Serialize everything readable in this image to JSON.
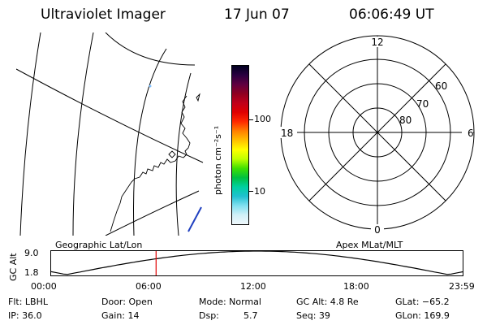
{
  "header": {
    "title": "Ultraviolet Imager",
    "date": "17 Jun 07",
    "time": "06:06:49 UT"
  },
  "colorbar": {
    "unit_label": "photon cm⁻²s⁻¹",
    "ticks": [
      "100",
      "10"
    ],
    "colors": [
      "#000020",
      "#2a0040",
      "#600040",
      "#900020",
      "#c0001a",
      "#e00000",
      "#ff2a00",
      "#ff8000",
      "#ffc000",
      "#ffff00",
      "#c0ff00",
      "#40e000",
      "#00c040",
      "#00d0a0",
      "#20c0d0",
      "#80e0f0",
      "#d0f0f8",
      "#f0f8fc"
    ]
  },
  "panels": {
    "left_title": "Geographic Lat/Lon",
    "right_title": "Apex MLat/MLT"
  },
  "polar": {
    "mlt_labels": {
      "top": "12",
      "left": "18",
      "right": "6",
      "bottom": "0"
    },
    "lat_labels": [
      "60",
      "70",
      "80"
    ]
  },
  "strip": {
    "ylabel": "GC Alt",
    "ymax": "9.0",
    "ymin": "1.8",
    "x_ticks": [
      "00:00",
      "06:00",
      "12:00",
      "18:00",
      "23:59"
    ],
    "marker_time_hours": 6.11
  },
  "info": {
    "flt": "Flt: LBHL",
    "ip": "IP: 36.0",
    "door": "Door: Open",
    "gain": "Gain: 14",
    "mode": "Mode: Normal",
    "dsp_label": "Dsp:",
    "dsp_value": "5.7",
    "gcalt": "GC Alt: 4.8 Re",
    "seq": "Seq: 39",
    "glat": "GLat: −65.2",
    "glon": "GLon: 169.9"
  }
}
